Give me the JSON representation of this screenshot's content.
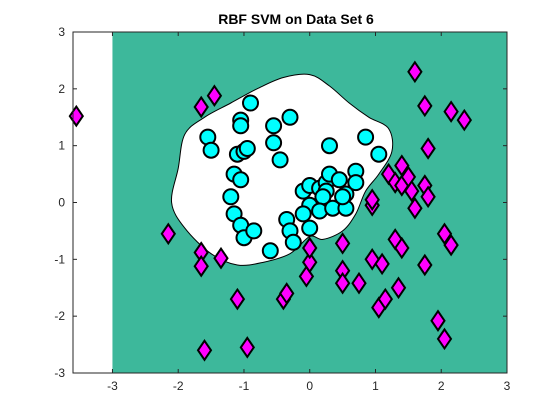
{
  "chart_data": {
    "type": "scatter",
    "title": "RBF SVM on Data Set 6",
    "xlabel": "",
    "ylabel": "",
    "xlim": [
      -3.6,
      3
    ],
    "ylim": [
      -3,
      3
    ],
    "xticks": [
      "-3",
      "-2",
      "-1",
      "0",
      "1",
      "2",
      "3"
    ],
    "xtick_values": [
      -3,
      -2,
      -1,
      0,
      1,
      2,
      3
    ],
    "yticks": [
      "-3",
      "-2",
      "-1",
      "0",
      "1",
      "2",
      "3"
    ],
    "ytick_values": [
      -3,
      -2,
      -1,
      0,
      1,
      2,
      3
    ],
    "grid": false,
    "legend": "none",
    "colors": {
      "region_background": "#3db89b",
      "region_inner": "#ffffff",
      "class_circle": "#00ffff",
      "class_diamond": "#ff00ff",
      "marker_edge": "#000000",
      "boundary": "#000000"
    },
    "decision_region": {
      "x_start": -3,
      "inner_boundary": [
        [
          -2.0,
          0.6
        ],
        [
          -1.9,
          1.2
        ],
        [
          -1.6,
          1.5
        ],
        [
          -1.2,
          1.75
        ],
        [
          -0.8,
          2.0
        ],
        [
          -0.4,
          2.2
        ],
        [
          0.0,
          2.25
        ],
        [
          0.3,
          2.05
        ],
        [
          0.6,
          1.75
        ],
        [
          0.9,
          1.5
        ],
        [
          1.2,
          1.3
        ],
        [
          1.25,
          0.9
        ],
        [
          1.05,
          0.5
        ],
        [
          0.85,
          0.2
        ],
        [
          0.7,
          -0.2
        ],
        [
          0.5,
          -0.5
        ],
        [
          0.2,
          -0.65
        ],
        [
          0.0,
          -0.6
        ],
        [
          -0.3,
          -0.9
        ],
        [
          -0.7,
          -1.05
        ],
        [
          -1.1,
          -1.1
        ],
        [
          -1.5,
          -0.9
        ],
        [
          -1.9,
          -0.45
        ],
        [
          -2.1,
          0.0
        ]
      ]
    },
    "series": [
      {
        "marker": "circle",
        "points": [
          [
            -1.55,
            1.15
          ],
          [
            -1.5,
            0.92
          ],
          [
            -1.05,
            1.45
          ],
          [
            -1.05,
            1.35
          ],
          [
            -0.9,
            1.75
          ],
          [
            -1.1,
            0.85
          ],
          [
            -1.0,
            0.9
          ],
          [
            -0.95,
            0.95
          ],
          [
            -1.15,
            0.5
          ],
          [
            -1.05,
            0.4
          ],
          [
            -1.2,
            0.1
          ],
          [
            -1.15,
            -0.2
          ],
          [
            -1.05,
            -0.4
          ],
          [
            -1.0,
            -0.62
          ],
          [
            -0.85,
            -0.5
          ],
          [
            -0.55,
            1.35
          ],
          [
            -0.55,
            1.05
          ],
          [
            -0.45,
            0.75
          ],
          [
            -0.3,
            1.5
          ],
          [
            -0.35,
            -0.3
          ],
          [
            -0.3,
            -0.5
          ],
          [
            -0.25,
            -0.7
          ],
          [
            -0.1,
            0.2
          ],
          [
            0.0,
            0.3
          ],
          [
            0.15,
            0.25
          ],
          [
            0.25,
            0.35
          ],
          [
            0.25,
            0.2
          ],
          [
            0.2,
            0.1
          ],
          [
            0.0,
            -0.05
          ],
          [
            -0.1,
            -0.2
          ],
          [
            0.15,
            -0.15
          ],
          [
            0.35,
            -0.1
          ],
          [
            0.3,
            1.0
          ],
          [
            0.3,
            0.5
          ],
          [
            0.45,
            0.4
          ],
          [
            0.55,
            0.15
          ],
          [
            0.55,
            -0.1
          ],
          [
            0.5,
            0.1
          ],
          [
            0.7,
            0.55
          ],
          [
            0.7,
            0.35
          ],
          [
            0.85,
            1.15
          ],
          [
            1.05,
            0.85
          ],
          [
            -0.6,
            -0.85
          ],
          [
            0.0,
            -0.45
          ]
        ]
      },
      {
        "marker": "diamond",
        "points": [
          [
            -3.55,
            1.52
          ],
          [
            -1.65,
            1.68
          ],
          [
            -1.45,
            1.88
          ],
          [
            -2.15,
            -0.55
          ],
          [
            -1.65,
            -0.88
          ],
          [
            -1.65,
            -1.12
          ],
          [
            -1.35,
            -0.98
          ],
          [
            -1.1,
            -1.7
          ],
          [
            -1.6,
            -2.6
          ],
          [
            -0.95,
            -2.55
          ],
          [
            -0.4,
            -1.7
          ],
          [
            -0.35,
            -1.6
          ],
          [
            -0.05,
            -1.3
          ],
          [
            0.0,
            -1.05
          ],
          [
            0.0,
            -0.8
          ],
          [
            0.5,
            -0.72
          ],
          [
            0.5,
            -1.2
          ],
          [
            0.5,
            -1.42
          ],
          [
            0.75,
            -1.42
          ],
          [
            0.95,
            -1.0
          ],
          [
            1.05,
            -1.85
          ],
          [
            1.15,
            -1.7
          ],
          [
            1.1,
            -1.08
          ],
          [
            1.2,
            0.5
          ],
          [
            1.3,
            0.35
          ],
          [
            1.4,
            0.65
          ],
          [
            1.4,
            0.3
          ],
          [
            1.5,
            0.45
          ],
          [
            1.55,
            0.2
          ],
          [
            1.6,
            -0.1
          ],
          [
            1.3,
            -0.65
          ],
          [
            1.4,
            -0.8
          ],
          [
            1.35,
            -1.5
          ],
          [
            0.95,
            -0.05
          ],
          [
            0.95,
            0.05
          ],
          [
            1.75,
            -1.1
          ],
          [
            1.75,
            0.3
          ],
          [
            1.8,
            0.1
          ],
          [
            1.8,
            0.95
          ],
          [
            1.6,
            2.3
          ],
          [
            1.75,
            1.7
          ],
          [
            2.15,
            1.6
          ],
          [
            2.35,
            1.45
          ],
          [
            2.05,
            -0.55
          ],
          [
            2.15,
            -0.75
          ],
          [
            1.95,
            -2.08
          ],
          [
            2.05,
            -2.4
          ]
        ]
      }
    ]
  }
}
